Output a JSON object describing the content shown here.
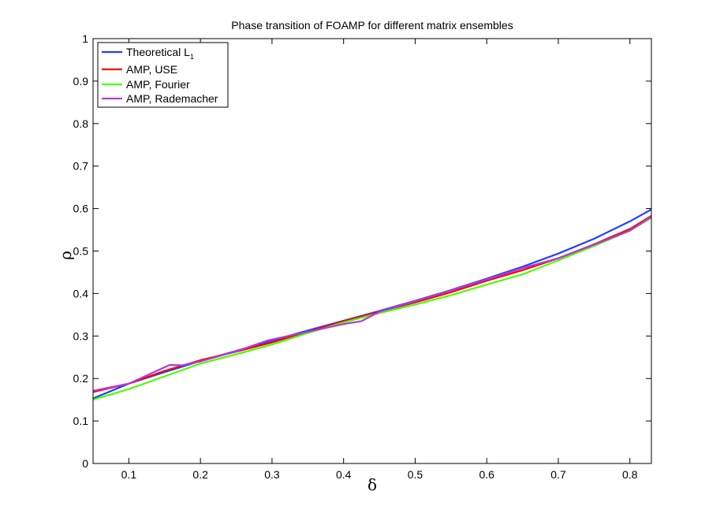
{
  "chart_data": {
    "type": "line",
    "title": "Phase transition of FOAMP for different matrix ensembles",
    "xlabel": "δ",
    "ylabel": "ρ",
    "xlim": [
      0.05,
      0.83
    ],
    "ylim": [
      0,
      1
    ],
    "xticks": [
      0.1,
      0.2,
      0.3,
      0.4,
      0.5,
      0.6,
      0.7,
      0.8
    ],
    "yticks": [
      0,
      0.1,
      0.2,
      0.3,
      0.4,
      0.5,
      0.6,
      0.7,
      0.8,
      0.9,
      1
    ],
    "xtick_labels": [
      "0.1",
      "0.2",
      "0.3",
      "0.4",
      "0.5",
      "0.6",
      "0.7",
      "0.8"
    ],
    "ytick_labels": [
      "0",
      "0.1",
      "0.2",
      "0.3",
      "0.4",
      "0.5",
      "0.6",
      "0.7",
      "0.8",
      "0.9",
      "1"
    ],
    "grid": false,
    "legend_position": "top-left",
    "series": [
      {
        "name": "Theoretical L1",
        "legend_main": "Theoretical L",
        "legend_sub": "1",
        "color": "#1f3fff",
        "x": [
          0.05,
          0.1,
          0.15,
          0.2,
          0.25,
          0.3,
          0.35,
          0.4,
          0.45,
          0.5,
          0.55,
          0.6,
          0.65,
          0.7,
          0.75,
          0.8,
          0.83
        ],
        "y": [
          0.153,
          0.188,
          0.215,
          0.241,
          0.265,
          0.289,
          0.313,
          0.336,
          0.359,
          0.383,
          0.408,
          0.435,
          0.463,
          0.494,
          0.529,
          0.57,
          0.598
        ]
      },
      {
        "name": "AMP, USE",
        "color": "#ff0000",
        "x": [
          0.05,
          0.1,
          0.15,
          0.2,
          0.25,
          0.3,
          0.35,
          0.4,
          0.45,
          0.5,
          0.55,
          0.6,
          0.65,
          0.7,
          0.75,
          0.8,
          0.83
        ],
        "y": [
          0.168,
          0.188,
          0.218,
          0.243,
          0.263,
          0.285,
          0.31,
          0.335,
          0.357,
          0.379,
          0.403,
          0.43,
          0.455,
          0.483,
          0.516,
          0.552,
          0.583
        ]
      },
      {
        "name": "AMP, Fourier",
        "color": "#4cff00",
        "x": [
          0.05,
          0.1,
          0.15,
          0.2,
          0.25,
          0.3,
          0.35,
          0.4,
          0.45,
          0.5,
          0.55,
          0.6,
          0.65,
          0.7,
          0.75,
          0.8,
          0.83
        ],
        "y": [
          0.15,
          0.175,
          0.205,
          0.235,
          0.257,
          0.28,
          0.307,
          0.332,
          0.354,
          0.374,
          0.396,
          0.421,
          0.445,
          0.478,
          0.512,
          0.548,
          0.578
        ]
      },
      {
        "name": "AMP, Rademacher",
        "color": "#b23bd8",
        "x": [
          0.05,
          0.1,
          0.157,
          0.175,
          0.2,
          0.25,
          0.295,
          0.35,
          0.4,
          0.425,
          0.45,
          0.5,
          0.55,
          0.6,
          0.65,
          0.7,
          0.75,
          0.8,
          0.83
        ],
        "y": [
          0.171,
          0.188,
          0.232,
          0.231,
          0.24,
          0.264,
          0.29,
          0.31,
          0.328,
          0.335,
          0.357,
          0.382,
          0.407,
          0.433,
          0.46,
          0.483,
          0.515,
          0.548,
          0.581
        ]
      }
    ]
  }
}
